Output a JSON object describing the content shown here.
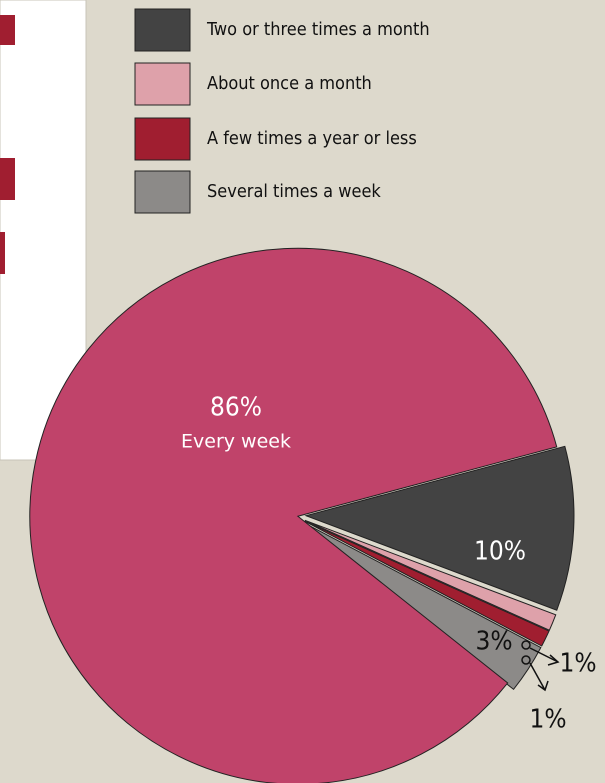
{
  "chart_data": {
    "type": "pie",
    "categories": [
      "Two or three times a month",
      "About once a month",
      "A few times a year or less",
      "Several times a week",
      "Every week"
    ],
    "values": [
      10,
      1,
      1,
      3,
      86
    ],
    "value_labels": [
      "10%",
      "1%",
      "1%",
      "3%",
      "86%"
    ],
    "colors": [
      "#434343",
      "#dea1aa",
      "#a01e30",
      "#8c8a88",
      "#c0436a"
    ]
  }
}
